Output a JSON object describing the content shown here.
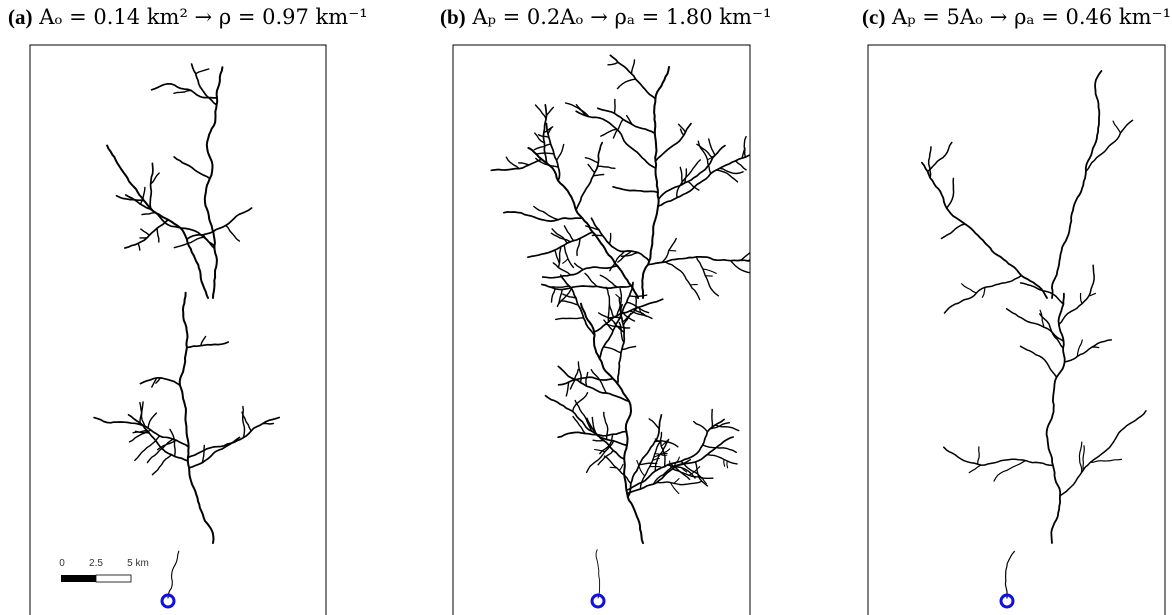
{
  "panels": [
    {
      "label": "(a)",
      "formula": "Aₒ = 0.14 km² → ρ = 0.97 km⁻¹"
    },
    {
      "label": "(b)",
      "formula": "Aₚ = 0.2Aₒ → ρₐ = 1.80 km⁻¹"
    },
    {
      "label": "(c)",
      "formula": "Aₚ = 5Aₒ → ρₐ = 0.46 km⁻¹"
    }
  ],
  "scale_bar": {
    "ticks": [
      "0",
      "2.5",
      "5 km"
    ]
  }
}
